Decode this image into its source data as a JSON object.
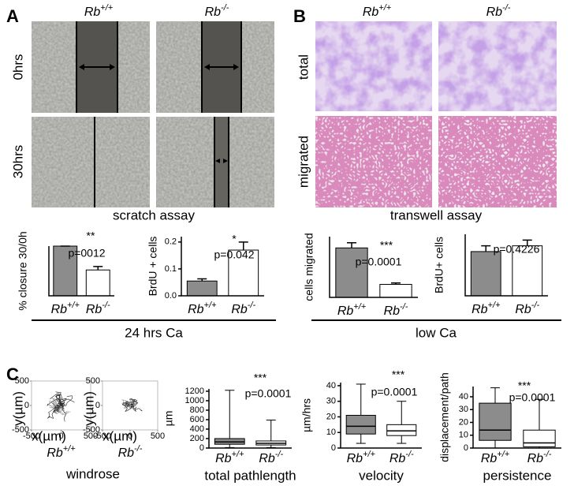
{
  "figure": {
    "panel_a": "A",
    "panel_b": "B",
    "panel_c": "C",
    "a_columns": [
      "Rb+/+",
      "Rb-/-"
    ],
    "a_rows": [
      "0hrs",
      "30hrs"
    ],
    "a_caption": "scratch assay",
    "b_columns": [
      "Rb+/+",
      "Rb-/-"
    ],
    "b_rows": [
      "total",
      "migrated"
    ],
    "b_caption": "transwell assay",
    "a_group": "24 hrs Ca",
    "b_group": "low Ca",
    "windrose_caption": "windrose"
  },
  "chart_data": [
    {
      "type": "bar",
      "y_label": "% closure 30/0h",
      "categories": [
        "Rb+/+",
        "Rb-/-"
      ],
      "values": [
        100,
        52
      ],
      "errors": [
        0,
        7
      ],
      "colors": [
        "#8c8c8c",
        "#ffffff"
      ],
      "ylim": [
        0,
        100
      ],
      "annotations": [
        "**",
        "p=0012"
      ]
    },
    {
      "type": "bar",
      "y_label": "BrdU + cells",
      "categories": [
        "Rb+/+",
        "Rb-/-"
      ],
      "values": [
        0.055,
        0.17
      ],
      "errors": [
        0.008,
        0.03
      ],
      "colors": [
        "#8c8c8c",
        "#ffffff"
      ],
      "ylim": [
        0,
        0.22
      ],
      "yticks": [
        {
          "value": 0,
          "label": "0.0"
        },
        0.1,
        0.2
      ],
      "annotations": [
        "*",
        "p=0.042"
      ]
    },
    {
      "type": "bar",
      "y_label": "cells migrated",
      "categories": [
        "Rb+/+",
        "Rb-/-"
      ],
      "values": [
        285,
        75
      ],
      "errors": [
        30,
        8
      ],
      "colors": [
        "#8c8c8c",
        "#ffffff"
      ],
      "ylim": [
        0,
        350
      ],
      "annotations": [
        "***",
        "p=0.0001"
      ]
    },
    {
      "type": "bar",
      "y_label": "BrdU+ cells",
      "categories": [
        "Rb+/+",
        "Rb-/-"
      ],
      "values": [
        0.23,
        0.26
      ],
      "errors": [
        0.03,
        0.03
      ],
      "colors": [
        "#8c8c8c",
        "#ffffff"
      ],
      "ylim": [
        0,
        0.32
      ],
      "annotations": [
        "p=0.4226"
      ]
    },
    {
      "type": "windrose",
      "x_label": "x(µm)",
      "y_label": "y(µm)",
      "caption": "Rb+/+",
      "xlim": [
        -500,
        500
      ],
      "ylim": [
        -500,
        500
      ],
      "xticks": [
        -500,
        0,
        500
      ],
      "yticks": [
        -500,
        0,
        500
      ]
    },
    {
      "type": "windrose",
      "x_label": "x(µm)",
      "y_label": "y(µm)",
      "caption": "Rb-/-",
      "xlim": [
        -500,
        500
      ],
      "ylim": [
        -500,
        500
      ],
      "xticks": [
        -500,
        0,
        500
      ],
      "yticks": [
        -500,
        0,
        500
      ]
    },
    {
      "type": "box",
      "y_label": "µm",
      "caption": "total pathlength",
      "categories": [
        "Rb+/+",
        "Rb-/-"
      ],
      "colors": [
        "#8c8c8c",
        "#ffffff"
      ],
      "ylim": [
        0,
        1250
      ],
      "yticks": [
        0,
        200,
        400,
        600,
        800,
        1000,
        1200
      ],
      "boxes": [
        {
          "min": 10,
          "q1": 80,
          "median": 130,
          "q3": 200,
          "max": 1220
        },
        {
          "min": 10,
          "q1": 65,
          "median": 100,
          "q3": 150,
          "max": 590
        }
      ],
      "annotations": [
        "***",
        "p=0.0001"
      ]
    },
    {
      "type": "box",
      "y_label": "µm/hrs",
      "caption": "velocity",
      "categories": [
        "Rb+/+",
        "Rb-/-"
      ],
      "colors": [
        "#8c8c8c",
        "#ffffff"
      ],
      "ylim": [
        0,
        42
      ],
      "yticks": [
        0,
        10,
        20,
        30,
        40
      ],
      "boxes": [
        {
          "min": 3,
          "q1": 9,
          "median": 14,
          "q3": 21,
          "max": 41
        },
        {
          "min": 3,
          "q1": 8,
          "median": 11,
          "q3": 15,
          "max": 30
        }
      ],
      "annotations": [
        "***",
        "p=0.0001"
      ]
    },
    {
      "type": "box",
      "y_label": "displacement/path",
      "caption": "persistence",
      "categories": [
        "Rb+/+",
        "Rb-/-"
      ],
      "colors": [
        "#8c8c8c",
        "#ffffff"
      ],
      "ylim": [
        0,
        48
      ],
      "yticks": [
        0,
        10,
        20,
        30,
        40
      ],
      "boxes": [
        {
          "min": 0,
          "q1": 6,
          "median": 14,
          "q3": 35,
          "max": 47
        },
        {
          "min": 0,
          "q1": 1,
          "median": 4,
          "q3": 14,
          "max": 38
        }
      ],
      "annotations": [
        "***",
        "p=0.0001"
      ]
    }
  ]
}
